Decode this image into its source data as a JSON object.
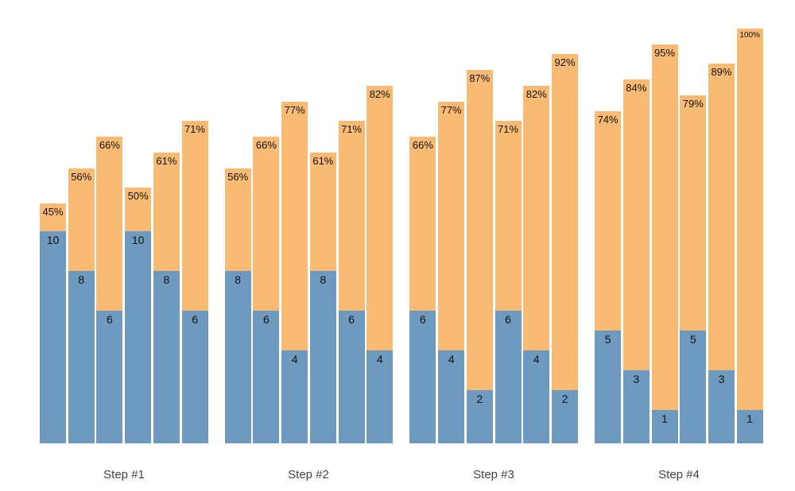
{
  "chart_data": {
    "type": "bar",
    "subtype": "grouped-stacked-bars",
    "title": "",
    "xlabel": "",
    "ylabel": "",
    "legend": "none",
    "axes": "none",
    "gridlines": false,
    "categories": [
      "Step #1",
      "Step #2",
      "Step #3",
      "Step #4"
    ],
    "colors": {
      "count_segment": "#6f9ac0",
      "percent_segment": "#f9bb74",
      "bar_label_text": "#111111",
      "category_label_text": "#434343",
      "background": "#ffffff"
    },
    "series": [
      {
        "name": "count-bottom-segment",
        "values_by_group": [
          [
            10,
            8,
            6,
            10,
            8,
            6
          ],
          [
            8,
            6,
            4,
            8,
            6,
            4
          ],
          [
            6,
            4,
            2,
            6,
            4,
            2
          ],
          [
            5,
            3,
            1,
            5,
            3,
            1
          ]
        ]
      },
      {
        "name": "percent-top-segment",
        "values_by_group": [
          [
            45,
            56,
            66,
            50,
            61,
            71
          ],
          [
            56,
            66,
            77,
            61,
            71,
            82
          ],
          [
            66,
            77,
            87,
            71,
            82,
            92
          ],
          [
            74,
            84,
            95,
            79,
            89,
            100
          ]
        ]
      }
    ],
    "groups": [
      {
        "label": "Step #1",
        "bars": [
          {
            "count": 10,
            "pct": 45,
            "count_label": "10",
            "pct_label": "45%"
          },
          {
            "count": 8,
            "pct": 56,
            "count_label": "8",
            "pct_label": "56%"
          },
          {
            "count": 6,
            "pct": 66,
            "count_label": "6",
            "pct_label": "66%"
          },
          {
            "count": 10,
            "pct": 50,
            "count_label": "10",
            "pct_label": "50%"
          },
          {
            "count": 8,
            "pct": 61,
            "count_label": "8",
            "pct_label": "61%"
          },
          {
            "count": 6,
            "pct": 71,
            "count_label": "6",
            "pct_label": "71%"
          }
        ]
      },
      {
        "label": "Step #2",
        "bars": [
          {
            "count": 8,
            "pct": 56,
            "count_label": "8",
            "pct_label": "56%"
          },
          {
            "count": 6,
            "pct": 66,
            "count_label": "6",
            "pct_label": "66%"
          },
          {
            "count": 4,
            "pct": 77,
            "count_label": "4",
            "pct_label": "77%"
          },
          {
            "count": 8,
            "pct": 61,
            "count_label": "8",
            "pct_label": "61%"
          },
          {
            "count": 6,
            "pct": 71,
            "count_label": "6",
            "pct_label": "71%"
          },
          {
            "count": 4,
            "pct": 82,
            "count_label": "4",
            "pct_label": "82%"
          }
        ]
      },
      {
        "label": "Step #3",
        "bars": [
          {
            "count": 6,
            "pct": 66,
            "count_label": "6",
            "pct_label": "66%"
          },
          {
            "count": 4,
            "pct": 77,
            "count_label": "4",
            "pct_label": "77%"
          },
          {
            "count": 2,
            "pct": 87,
            "count_label": "2",
            "pct_label": "87%"
          },
          {
            "count": 6,
            "pct": 71,
            "count_label": "6",
            "pct_label": "71%"
          },
          {
            "count": 4,
            "pct": 82,
            "count_label": "4",
            "pct_label": "82%"
          },
          {
            "count": 2,
            "pct": 92,
            "count_label": "2",
            "pct_label": "92%"
          }
        ]
      },
      {
        "label": "Step #4",
        "bars": [
          {
            "count": 5,
            "pct": 74,
            "count_label": "5",
            "pct_label": "74%"
          },
          {
            "count": 3,
            "pct": 84,
            "count_label": "3",
            "pct_label": "84%"
          },
          {
            "count": 1,
            "pct": 95,
            "count_label": "1",
            "pct_label": "95%"
          },
          {
            "count": 5,
            "pct": 79,
            "count_label": "5",
            "pct_label": "79%"
          },
          {
            "count": 3,
            "pct": 89,
            "count_label": "3",
            "pct_label": "89%"
          },
          {
            "count": 1,
            "pct": 100,
            "count_label": "1",
            "pct_label": "100%"
          }
        ]
      }
    ]
  }
}
